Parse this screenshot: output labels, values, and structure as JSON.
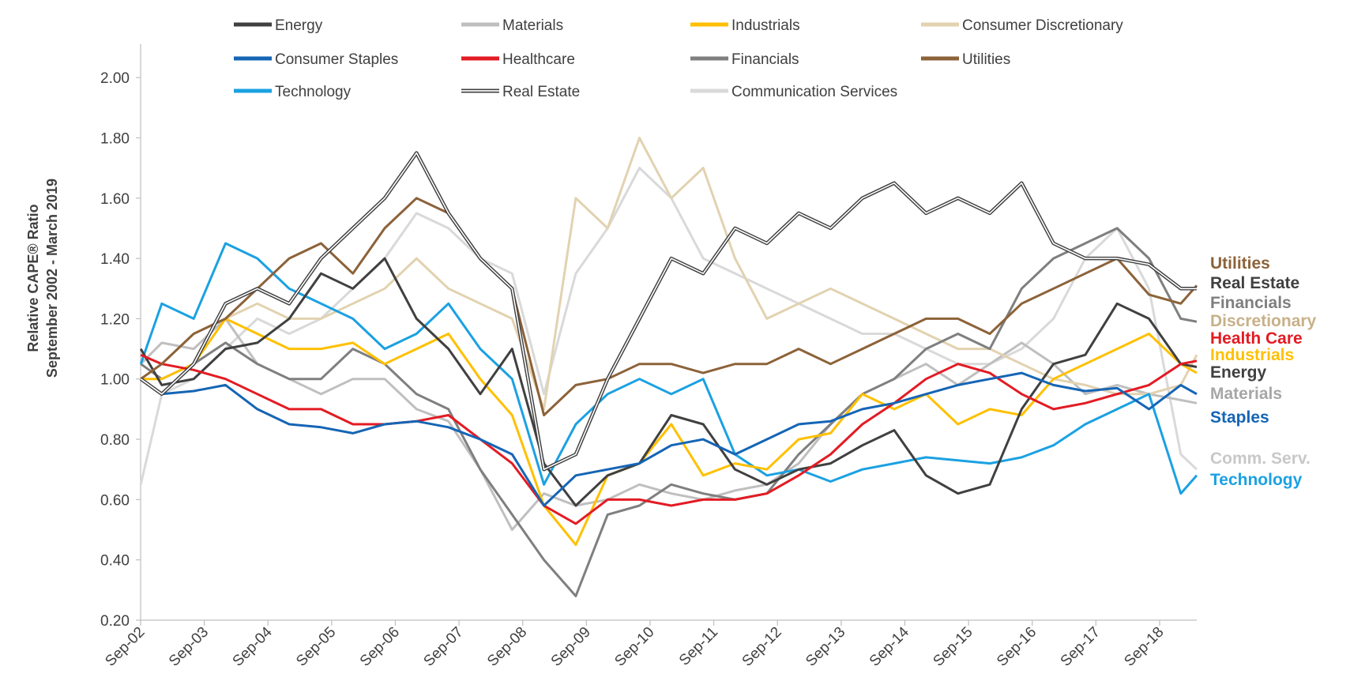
{
  "chart_data": {
    "type": "line",
    "title": "",
    "ylabel_lines": [
      "Relative CAPE® Ratio",
      "September 2002 - March 2019"
    ],
    "xlabel": "",
    "ylim": [
      0.2,
      2.1
    ],
    "yticks": [
      0.2,
      0.4,
      0.6,
      0.8,
      1.0,
      1.2,
      1.4,
      1.6,
      1.8,
      2.0
    ],
    "ytick_labels": [
      "0.20",
      "0.40",
      "0.60",
      "0.80",
      "1.00",
      "1.20",
      "1.40",
      "1.60",
      "1.80",
      "2.00"
    ],
    "xlim": [
      2002.667,
      2019.25
    ],
    "xtick_labels": [
      "Sep-02",
      "Sep-03",
      "Sep-04",
      "Sep-05",
      "Sep-06",
      "Sep-07",
      "Sep-08",
      "Sep-09",
      "Sep-10",
      "Sep-11",
      "Sep-12",
      "Sep-13",
      "Sep-14",
      "Sep-15",
      "Sep-16",
      "Sep-17",
      "Sep-18"
    ],
    "x": [
      2002.67,
      2003.0,
      2003.5,
      2004.0,
      2004.5,
      2005.0,
      2005.5,
      2006.0,
      2006.5,
      2007.0,
      2007.5,
      2008.0,
      2008.5,
      2009.0,
      2009.5,
      2010.0,
      2010.5,
      2011.0,
      2011.5,
      2012.0,
      2012.5,
      2013.0,
      2013.5,
      2014.0,
      2014.5,
      2015.0,
      2015.5,
      2016.0,
      2016.5,
      2017.0,
      2017.5,
      2018.0,
      2018.5,
      2019.0,
      2019.25
    ],
    "series": [
      {
        "name": "Energy",
        "color": "#404040",
        "values": [
          1.1,
          0.98,
          1.0,
          1.1,
          1.12,
          1.2,
          1.35,
          1.3,
          1.4,
          1.2,
          1.1,
          0.95,
          1.1,
          0.72,
          0.58,
          0.68,
          0.72,
          0.88,
          0.85,
          0.7,
          0.65,
          0.7,
          0.72,
          0.78,
          0.83,
          0.68,
          0.62,
          0.65,
          0.9,
          1.05,
          1.08,
          1.25,
          1.2,
          1.05,
          1.04
        ]
      },
      {
        "name": "Materials",
        "color": "#bfbfbf",
        "values": [
          1.05,
          1.12,
          1.1,
          1.2,
          1.05,
          1.0,
          0.95,
          1.0,
          1.0,
          0.9,
          0.86,
          0.7,
          0.5,
          0.62,
          0.58,
          0.6,
          0.65,
          0.62,
          0.6,
          0.63,
          0.65,
          0.72,
          0.85,
          0.95,
          1.0,
          1.05,
          0.98,
          1.05,
          1.12,
          1.05,
          0.95,
          0.98,
          0.95,
          0.93,
          0.92
        ]
      },
      {
        "name": "Industrials",
        "color": "#ffc000",
        "values": [
          1.0,
          1.0,
          1.05,
          1.2,
          1.15,
          1.1,
          1.1,
          1.12,
          1.05,
          1.1,
          1.15,
          1.0,
          0.88,
          0.58,
          0.45,
          0.68,
          0.72,
          0.85,
          0.68,
          0.72,
          0.7,
          0.8,
          0.82,
          0.95,
          0.9,
          0.95,
          0.85,
          0.9,
          0.88,
          1.0,
          1.05,
          1.1,
          1.15,
          1.05,
          1.02
        ]
      },
      {
        "name": "Consumer Discretionary",
        "color": "#e2d2b0",
        "values": [
          1.0,
          1.05,
          1.15,
          1.2,
          1.25,
          1.2,
          1.2,
          1.25,
          1.3,
          1.4,
          1.3,
          1.25,
          1.2,
          0.9,
          1.6,
          1.5,
          1.8,
          1.6,
          1.7,
          1.4,
          1.2,
          1.25,
          1.3,
          1.25,
          1.2,
          1.15,
          1.1,
          1.1,
          1.05,
          1.0,
          0.98,
          0.95,
          0.95,
          0.98,
          1.08
        ]
      },
      {
        "name": "Consumer Staples",
        "color": "#1565b5",
        "values": [
          1.0,
          0.95,
          0.96,
          0.98,
          0.9,
          0.85,
          0.84,
          0.82,
          0.85,
          0.86,
          0.84,
          0.8,
          0.75,
          0.58,
          0.68,
          0.7,
          0.72,
          0.78,
          0.8,
          0.75,
          0.8,
          0.85,
          0.86,
          0.9,
          0.92,
          0.95,
          0.98,
          1.0,
          1.02,
          0.98,
          0.96,
          0.97,
          0.9,
          0.98,
          0.95
        ]
      },
      {
        "name": "Healthcare",
        "color": "#e31b23",
        "values": [
          1.08,
          1.05,
          1.03,
          1.0,
          0.95,
          0.9,
          0.9,
          0.85,
          0.85,
          0.86,
          0.88,
          0.8,
          0.72,
          0.58,
          0.52,
          0.6,
          0.6,
          0.58,
          0.6,
          0.6,
          0.62,
          0.68,
          0.75,
          0.85,
          0.92,
          1.0,
          1.05,
          1.02,
          0.95,
          0.9,
          0.92,
          0.95,
          0.98,
          1.05,
          1.06
        ]
      },
      {
        "name": "Financials",
        "color": "#7f7f7f",
        "values": [
          1.05,
          1.0,
          1.05,
          1.12,
          1.05,
          1.0,
          1.0,
          1.1,
          1.05,
          0.95,
          0.9,
          0.7,
          0.55,
          0.4,
          0.28,
          0.55,
          0.58,
          0.65,
          0.62,
          0.6,
          0.62,
          0.75,
          0.85,
          0.95,
          1.0,
          1.1,
          1.15,
          1.1,
          1.3,
          1.4,
          1.45,
          1.5,
          1.4,
          1.2,
          1.19
        ]
      },
      {
        "name": "Utilities",
        "color": "#8c6239",
        "values": [
          1.0,
          1.05,
          1.15,
          1.2,
          1.3,
          1.4,
          1.45,
          1.35,
          1.5,
          1.6,
          1.55,
          1.4,
          1.3,
          0.88,
          0.98,
          1.0,
          1.05,
          1.05,
          1.02,
          1.05,
          1.05,
          1.1,
          1.05,
          1.1,
          1.15,
          1.2,
          1.2,
          1.15,
          1.25,
          1.3,
          1.35,
          1.4,
          1.28,
          1.25,
          1.31
        ]
      },
      {
        "name": "Technology",
        "color": "#1ba1e2",
        "values": [
          1.05,
          1.25,
          1.2,
          1.45,
          1.4,
          1.3,
          1.25,
          1.2,
          1.1,
          1.15,
          1.25,
          1.1,
          1.0,
          0.65,
          0.85,
          0.95,
          1.0,
          0.95,
          1.0,
          0.75,
          0.68,
          0.7,
          0.66,
          0.7,
          0.72,
          0.74,
          0.73,
          0.72,
          0.74,
          0.78,
          0.85,
          0.9,
          0.95,
          0.62,
          0.68
        ]
      },
      {
        "name": "Real Estate",
        "color": "#404040",
        "double": true,
        "values": [
          1.0,
          0.95,
          1.05,
          1.25,
          1.3,
          1.25,
          1.4,
          1.5,
          1.6,
          1.75,
          1.55,
          1.4,
          1.3,
          0.7,
          0.75,
          1.0,
          1.2,
          1.4,
          1.35,
          1.5,
          1.45,
          1.55,
          1.5,
          1.6,
          1.65,
          1.55,
          1.6,
          1.55,
          1.65,
          1.45,
          1.4,
          1.4,
          1.38,
          1.3,
          1.3
        ]
      },
      {
        "name": "Communication Services",
        "color": "#d9d9d9",
        "values": [
          0.65,
          0.95,
          1.0,
          1.1,
          1.2,
          1.15,
          1.2,
          1.3,
          1.4,
          1.55,
          1.5,
          1.4,
          1.35,
          0.95,
          1.35,
          1.5,
          1.7,
          1.6,
          1.4,
          1.35,
          1.3,
          1.25,
          1.2,
          1.15,
          1.15,
          1.1,
          1.05,
          1.05,
          1.1,
          1.2,
          1.4,
          1.5,
          1.3,
          0.75,
          0.7
        ]
      }
    ],
    "legend": {
      "placement": "top",
      "rows": [
        [
          "Energy",
          "Materials",
          "Industrials",
          "Consumer Discretionary"
        ],
        [
          "Consumer Staples",
          "Healthcare",
          "Financials",
          "Utilities"
        ],
        [
          "Technology",
          "Real Estate",
          "Communication Services"
        ]
      ]
    },
    "end_labels": [
      {
        "text": "Utilities",
        "color": "#8c6239"
      },
      {
        "text": "Real Estate",
        "color": "#404040"
      },
      {
        "text": "Financials",
        "color": "#7f7f7f"
      },
      {
        "text": "Discretionary",
        "color": "#c8b088"
      },
      {
        "text": "Health Care",
        "color": "#e31b23"
      },
      {
        "text": "Industrials",
        "color": "#ffc000"
      },
      {
        "text": "Energy",
        "color": "#404040"
      },
      {
        "text": "Materials",
        "color": "#a6a6a6"
      },
      {
        "text": "Staples",
        "color": "#1565b5"
      },
      {
        "text": "Comm. Serv.",
        "color": "#c8c8c8"
      },
      {
        "text": "Technology",
        "color": "#1ba1e2"
      }
    ]
  }
}
